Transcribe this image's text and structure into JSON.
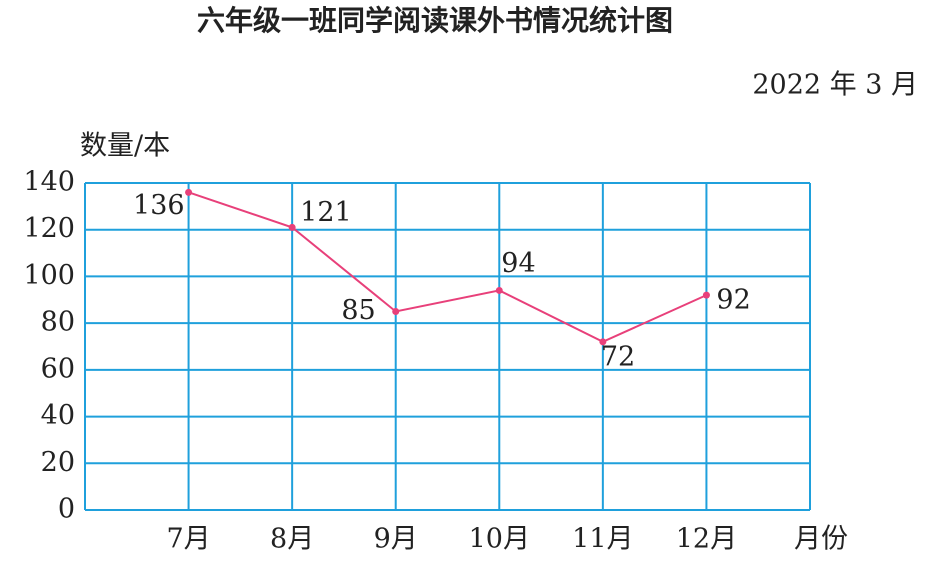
{
  "chart_data": {
    "type": "line",
    "title": "六年级一班同学阅读课外书情况统计图",
    "subtitle": "2022 年 3 月",
    "y_label": "数量/本",
    "x_label": "月份",
    "categories": [
      "7月",
      "8月",
      "9月",
      "10月",
      "11月",
      "12月"
    ],
    "values": [
      136,
      121,
      85,
      94,
      72,
      92
    ],
    "color": "#e8407a",
    "grid_color": "#1fa0dc",
    "ylim": [
      0,
      140
    ],
    "yticks": [
      0,
      20,
      40,
      60,
      80,
      100,
      120,
      140
    ],
    "grid": true
  }
}
